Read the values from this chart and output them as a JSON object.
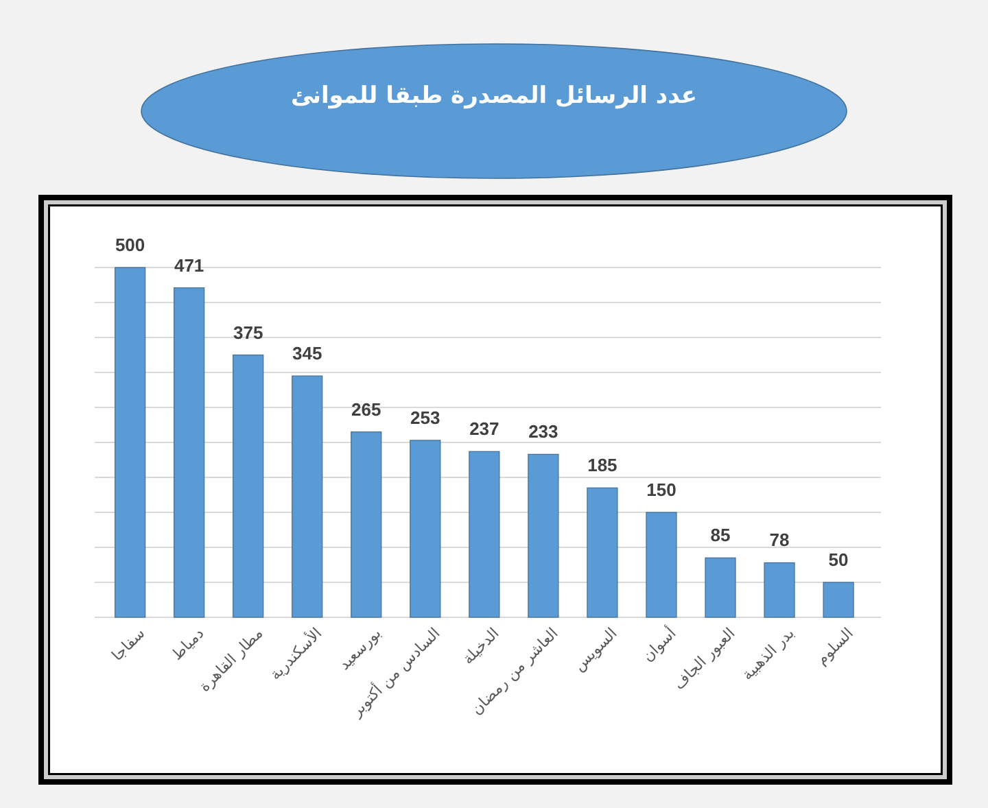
{
  "chart_data": {
    "type": "bar",
    "title": "عدد الرسائل المصدرة طبقا للموانئ",
    "categories": [
      "سفاجا",
      "دمياط",
      "مطار القاهرة",
      "الأسكندرية",
      "بورسعيد",
      "السادس من أكتوبر",
      "الدخيلة",
      "العاشر من رمضان",
      "السويس",
      "أسوان",
      "العبور الجاف",
      "بدر الذهبية",
      "السلوم"
    ],
    "values": [
      500,
      471,
      375,
      345,
      265,
      253,
      237,
      233,
      185,
      150,
      85,
      78,
      50
    ],
    "color": "#5b9bd5",
    "ylim": [
      0,
      500
    ],
    "yticks": [
      {
        "value": 0,
        "label": null
      },
      {
        "value": 50,
        "label": null
      },
      {
        "value": 100,
        "label": null
      },
      {
        "value": 150,
        "label": null
      },
      {
        "value": 200,
        "label": null
      },
      {
        "value": 250,
        "label": null
      },
      {
        "value": 300,
        "label": null
      },
      {
        "value": 350,
        "label": null
      },
      {
        "value": 400,
        "label": null
      },
      {
        "value": 450,
        "label": null
      },
      {
        "value": 500,
        "label": null
      }
    ],
    "grid": "y",
    "tick_labels": "x",
    "data_labels": true
  }
}
